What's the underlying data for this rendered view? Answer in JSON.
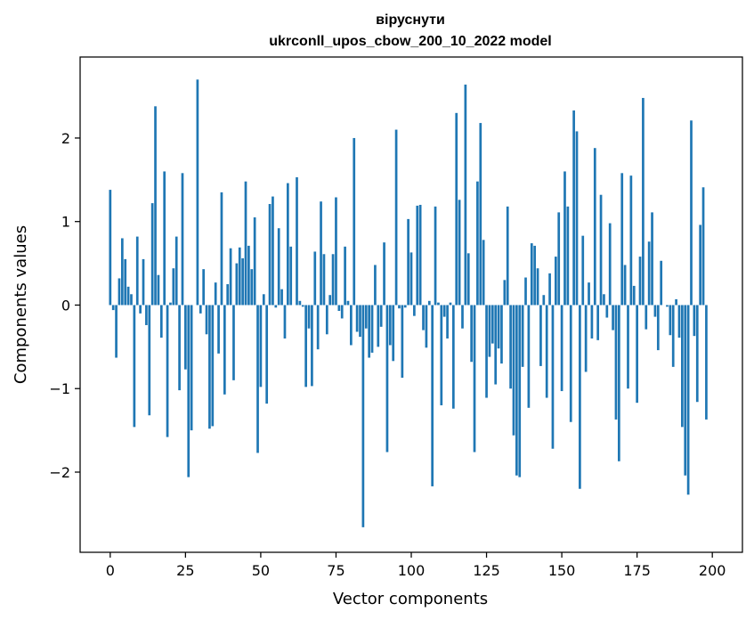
{
  "chart_data": {
    "type": "bar",
    "title": "віруснути",
    "subtitle": "ukrconll_upos_cbow_200_10_2022 model",
    "xlabel": "Vector components",
    "ylabel": "Components values",
    "xlim": [
      -10,
      210
    ],
    "ylim": [
      -2.96,
      2.97
    ],
    "xticks": [
      0,
      25,
      50,
      75,
      100,
      125,
      150,
      175,
      200
    ],
    "yticks": [
      -2,
      -1,
      0,
      1,
      2
    ],
    "xtick_labels": [
      "0",
      "25",
      "50",
      "75",
      "100",
      "125",
      "150",
      "175",
      "200"
    ],
    "ytick_labels": [
      "−2",
      "−1",
      "0",
      "1",
      "2"
    ],
    "bar_color": "#1f77b4",
    "values": [
      1.38,
      -0.06,
      -0.63,
      0.32,
      0.8,
      0.55,
      0.22,
      0.13,
      -1.46,
      0.82,
      -0.1,
      0.55,
      -0.24,
      -1.32,
      1.22,
      2.38,
      0.36,
      -0.39,
      1.6,
      -1.58,
      0.03,
      0.44,
      0.82,
      -1.02,
      1.58,
      -0.77,
      -2.06,
      -1.5,
      0.0,
      2.7,
      -0.1,
      0.43,
      -0.35,
      -1.48,
      -1.45,
      0.27,
      -0.58,
      1.35,
      -1.07,
      0.25,
      0.68,
      -0.9,
      0.5,
      0.69,
      0.56,
      1.48,
      0.71,
      0.43,
      1.05,
      -1.77,
      -0.98,
      0.13,
      -1.18,
      1.21,
      1.3,
      -0.03,
      0.92,
      0.19,
      -0.4,
      1.46,
      0.7,
      0.0,
      1.53,
      0.05,
      -0.02,
      -0.98,
      -0.28,
      -0.97,
      0.64,
      -0.53,
      1.24,
      0.61,
      -0.35,
      0.12,
      0.61,
      1.29,
      -0.07,
      -0.16,
      0.7,
      0.05,
      -0.48,
      2.0,
      -0.32,
      -0.38,
      -2.66,
      -0.28,
      -0.63,
      -0.57,
      0.48,
      -0.5,
      -0.26,
      0.75,
      -1.76,
      -0.48,
      -0.67,
      2.1,
      -0.04,
      -0.87,
      -0.03,
      1.03,
      0.63,
      -0.13,
      1.19,
      1.2,
      -0.3,
      -0.51,
      0.05,
      -2.17,
      1.18,
      0.03,
      -1.2,
      -0.14,
      -0.4,
      0.03,
      -1.24,
      2.3,
      1.26,
      -0.28,
      2.64,
      0.62,
      -0.68,
      -1.76,
      1.48,
      2.18,
      0.78,
      -1.11,
      -0.62,
      -0.46,
      -0.95,
      -0.52,
      -0.7,
      0.3,
      1.18,
      -1.0,
      -1.56,
      -2.04,
      -2.06,
      -0.74,
      0.33,
      -1.23,
      0.74,
      0.71,
      0.44,
      -0.73,
      0.12,
      -1.11,
      0.38,
      -1.72,
      0.58,
      1.11,
      -1.03,
      1.6,
      1.18,
      -1.4,
      2.33,
      2.08,
      -2.2,
      0.83,
      -0.8,
      0.27,
      -0.4,
      1.88,
      -0.42,
      1.32,
      0.13,
      -0.15,
      0.98,
      -0.3,
      -1.37,
      -1.87,
      1.58,
      0.48,
      -1.0,
      1.55,
      0.23,
      -1.17,
      0.58,
      2.48,
      -0.29,
      0.76,
      1.11,
      -0.14,
      -0.54,
      0.53,
      0.0,
      -0.02,
      -0.36,
      -0.74,
      0.07,
      -0.39,
      -1.46,
      -2.04,
      -2.27,
      2.21,
      -0.37,
      -1.16,
      0.96,
      1.41,
      -1.37
    ]
  }
}
